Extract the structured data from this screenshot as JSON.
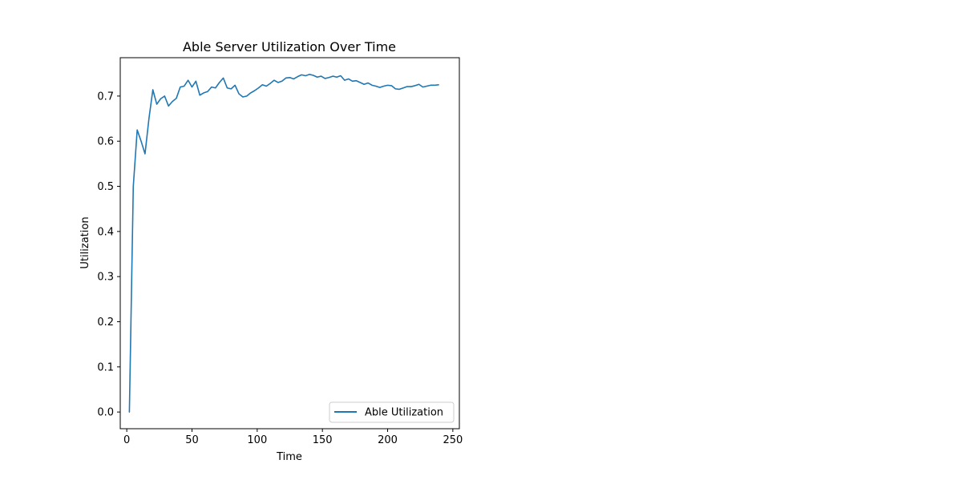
{
  "chart_data": {
    "type": "line",
    "title": "Able Server Utilization Over Time",
    "xlabel": "Time",
    "ylabel": "Utilization",
    "xlim": [
      -5,
      255
    ],
    "ylim": [
      -0.037,
      0.785
    ],
    "xticks": [
      0,
      50,
      100,
      150,
      200,
      250
    ],
    "yticks": [
      0.0,
      0.1,
      0.2,
      0.3,
      0.4,
      0.5,
      0.6,
      0.7
    ],
    "grid": false,
    "legend_position": "lower-right",
    "series": [
      {
        "name": "Able Utilization",
        "color": "#1f77b4",
        "x": [
          2,
          5,
          8,
          11,
          14,
          17,
          20,
          23,
          26,
          29,
          32,
          35,
          38,
          41,
          44,
          47,
          50,
          53,
          56,
          59,
          62,
          65,
          68,
          71,
          74,
          77,
          80,
          83,
          86,
          89,
          92,
          95,
          98,
          101,
          104,
          107,
          110,
          113,
          116,
          119,
          122,
          125,
          128,
          131,
          134,
          137,
          140,
          143,
          146,
          149,
          152,
          155,
          158,
          161,
          164,
          167,
          170,
          173,
          176,
          179,
          182,
          185,
          188,
          191,
          194,
          197,
          200,
          203,
          206,
          209,
          212,
          215,
          218,
          221,
          224,
          227,
          230,
          233,
          236,
          239
        ],
        "values": [
          0.0,
          0.5,
          0.625,
          0.6,
          0.572,
          0.65,
          0.714,
          0.682,
          0.694,
          0.7,
          0.678,
          0.688,
          0.695,
          0.72,
          0.722,
          0.735,
          0.72,
          0.733,
          0.702,
          0.707,
          0.71,
          0.72,
          0.718,
          0.73,
          0.74,
          0.718,
          0.716,
          0.724,
          0.705,
          0.698,
          0.7,
          0.707,
          0.712,
          0.718,
          0.725,
          0.722,
          0.728,
          0.735,
          0.73,
          0.733,
          0.74,
          0.741,
          0.738,
          0.743,
          0.747,
          0.745,
          0.748,
          0.746,
          0.742,
          0.744,
          0.739,
          0.741,
          0.744,
          0.742,
          0.745,
          0.735,
          0.738,
          0.733,
          0.734,
          0.73,
          0.726,
          0.729,
          0.724,
          0.722,
          0.719,
          0.722,
          0.724,
          0.723,
          0.716,
          0.715,
          0.718,
          0.721,
          0.721,
          0.723,
          0.726,
          0.72,
          0.722,
          0.724,
          0.724,
          0.725
        ]
      }
    ]
  }
}
